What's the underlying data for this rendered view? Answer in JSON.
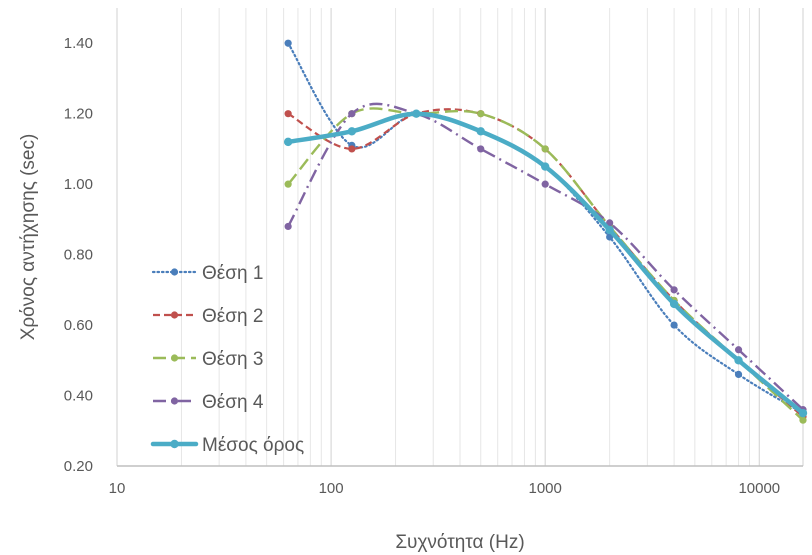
{
  "chart_data": {
    "type": "line",
    "title": "",
    "xlabel": "Συχνότητα (Hz)",
    "ylabel": "Χρόνος αντήχησης (sec)",
    "xscale": "log",
    "xlim": [
      10,
      16000
    ],
    "ylim": [
      0.2,
      1.5
    ],
    "x_ticks": [
      10,
      100,
      1000,
      10000
    ],
    "x_tick_labels": [
      "10",
      "100",
      "1000",
      "10000"
    ],
    "y_ticks": [
      0.2,
      0.4,
      0.6,
      0.8,
      1.0,
      1.2,
      1.4
    ],
    "y_tick_labels": [
      "0.20",
      "0.40",
      "0.60",
      "0.80",
      "1.00",
      "1.20",
      "1.40"
    ],
    "grid": true,
    "legend_position": "lower-left",
    "x": [
      63,
      125,
      250,
      500,
      1000,
      2000,
      4000,
      8000,
      16000
    ],
    "series": [
      {
        "name": "Θέση 1",
        "color": "#4a7ebb",
        "style": "dotted",
        "values": [
          1.4,
          1.11,
          1.2,
          1.15,
          1.05,
          0.85,
          0.6,
          0.46,
          0.35
        ]
      },
      {
        "name": "Θέση 2",
        "color": "#c0504d",
        "style": "dashed",
        "values": [
          1.2,
          1.1,
          1.2,
          1.2,
          1.1,
          0.88,
          0.67,
          0.5,
          0.34
        ]
      },
      {
        "name": "Θέση 3",
        "color": "#9bbb59",
        "style": "longdash",
        "values": [
          1.0,
          1.2,
          1.2,
          1.2,
          1.1,
          0.88,
          0.67,
          0.5,
          0.33
        ]
      },
      {
        "name": "Θέση 4",
        "color": "#8064a2",
        "style": "dashdot",
        "values": [
          0.88,
          1.2,
          1.2,
          1.1,
          1.0,
          0.89,
          0.7,
          0.53,
          0.36
        ]
      },
      {
        "name": "Μέσος όρος",
        "color": "#4bacc6",
        "style": "solid-thick",
        "values": [
          1.12,
          1.15,
          1.2,
          1.15,
          1.05,
          0.87,
          0.66,
          0.5,
          0.35
        ]
      }
    ]
  }
}
